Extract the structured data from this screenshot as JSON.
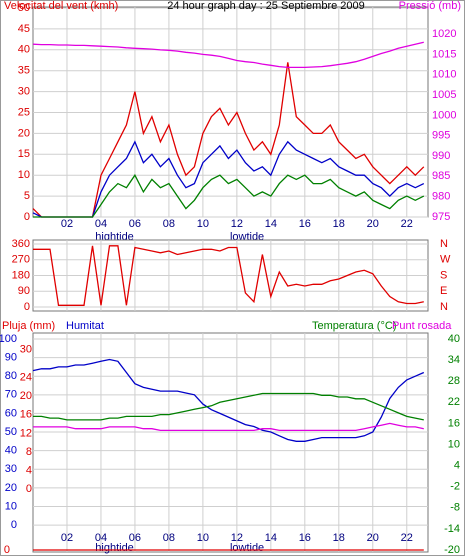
{
  "chart_data": [
    {
      "type": "line",
      "title": "24 hour graph day : 25 Septiembre 2009",
      "ylabel": "Velocitat del vent (kmh)",
      "y2label": "Pressió (mb)",
      "x": [
        0,
        0.5,
        1,
        1.5,
        2,
        2.5,
        3,
        3.5,
        4,
        4.5,
        5,
        5.5,
        6,
        6.5,
        7,
        7.5,
        8,
        8.5,
        9,
        9.5,
        10,
        10.5,
        11,
        11.5,
        12,
        12.5,
        13,
        13.5,
        14,
        14.5,
        15,
        15.5,
        16,
        16.5,
        17,
        17.5,
        18,
        18.5,
        19,
        19.5,
        20,
        20.5,
        21,
        21.5,
        22,
        22.5,
        23
      ],
      "xlim": [
        0,
        23.25
      ],
      "xticks": [
        {
          "value": 2,
          "label": "02"
        },
        {
          "value": 4,
          "label": "04"
        },
        {
          "value": 6,
          "label": "06"
        },
        {
          "value": 8,
          "label": "08"
        },
        {
          "value": 10,
          "label": "10"
        },
        {
          "value": 12,
          "label": "12"
        },
        {
          "value": 14,
          "label": "14"
        },
        {
          "value": 16,
          "label": "16"
        },
        {
          "value": 18,
          "label": "18"
        },
        {
          "value": 20,
          "label": "20"
        },
        {
          "value": 22,
          "label": "22"
        }
      ],
      "ylim": [
        0,
        50
      ],
      "yticks": [
        0,
        5,
        10,
        15,
        20,
        25,
        30,
        35,
        40,
        45,
        50
      ],
      "ytick_color": "#dd0000",
      "y2lim": [
        975,
        1026.4
      ],
      "y2ticks": [
        975,
        980,
        985,
        990,
        995,
        1000,
        1005,
        1010,
        1015,
        1020
      ],
      "y2tick_color": "#dd00dd",
      "grid": true,
      "annotations": [
        {
          "text": "hightide",
          "x": 4.8
        },
        {
          "text": "lowtide",
          "x": 12.6
        }
      ],
      "series": [
        {
          "color": "#e00000",
          "axis": "y",
          "values": [
            2,
            0,
            0,
            0,
            0,
            0,
            0,
            0,
            10,
            14,
            18,
            22,
            30,
            20,
            24,
            18,
            22,
            15,
            10,
            12,
            20,
            24,
            26,
            22,
            25,
            20,
            16,
            18,
            15,
            22,
            37,
            24,
            22,
            20,
            20,
            22,
            18,
            16,
            14,
            15,
            12,
            10,
            8,
            10,
            12,
            10,
            12
          ]
        },
        {
          "color": "#0000c8",
          "axis": "y",
          "values": [
            1,
            0,
            0,
            0,
            0,
            0,
            0,
            0,
            6,
            10,
            12,
            14,
            18,
            13,
            15,
            12,
            14,
            10,
            7,
            8,
            13,
            15,
            17,
            14,
            16,
            13,
            11,
            12,
            10,
            15,
            18,
            16,
            15,
            14,
            13,
            14,
            12,
            11,
            10,
            10,
            8,
            7,
            5,
            7,
            8,
            7,
            8
          ]
        },
        {
          "color": "#008000",
          "axis": "y",
          "values": [
            0,
            0,
            0,
            0,
            0,
            0,
            0,
            0,
            3,
            6,
            8,
            7,
            10,
            6,
            9,
            7,
            8,
            5,
            2,
            4,
            7,
            9,
            10,
            8,
            9,
            7,
            5,
            6,
            5,
            8,
            10,
            9,
            10,
            8,
            8,
            9,
            7,
            6,
            5,
            6,
            4,
            3,
            2,
            4,
            5,
            4,
            5
          ]
        },
        {
          "color": "#e000e0",
          "axis": "y2",
          "values": [
            1017.5,
            1017.4,
            1017.4,
            1017.3,
            1017.3,
            1017.2,
            1017.2,
            1017.1,
            1017,
            1016.9,
            1016.8,
            1016.6,
            1016.5,
            1016.4,
            1016.3,
            1016.1,
            1016,
            1015.8,
            1015.5,
            1015.3,
            1015,
            1014.8,
            1014.5,
            1014,
            1013.5,
            1013.2,
            1013,
            1012.6,
            1012.3,
            1012,
            1011.8,
            1011.8,
            1011.8,
            1011.9,
            1012,
            1012.2,
            1012.5,
            1012.8,
            1013.2,
            1013.8,
            1014.5,
            1015.2,
            1015.8,
            1016.5,
            1017,
            1017.5,
            1018
          ]
        }
      ]
    },
    {
      "type": "line",
      "x": [
        0,
        0.5,
        1,
        1.5,
        2,
        2.5,
        3,
        3.5,
        4,
        4.5,
        5,
        5.5,
        6,
        6.5,
        7,
        7.5,
        8,
        8.5,
        9,
        9.5,
        10,
        10.5,
        11,
        11.5,
        12,
        12.5,
        13,
        13.5,
        14,
        14.5,
        15,
        15.5,
        16,
        16.5,
        17,
        17.5,
        18,
        18.5,
        19,
        19.5,
        20,
        20.5,
        21,
        21.5,
        22,
        22.5,
        23
      ],
      "xlim": [
        0,
        23.25
      ],
      "ylim": [
        0,
        360
      ],
      "yticks": [
        0,
        90,
        180,
        270,
        360
      ],
      "ytick_color": "#dd0000",
      "y2lim": [
        0,
        360
      ],
      "y2ticks": [
        {
          "value": 0,
          "label": "N"
        },
        {
          "value": 90,
          "label": "E"
        },
        {
          "value": 180,
          "label": "S"
        },
        {
          "value": 270,
          "label": "W"
        },
        {
          "value": 360,
          "label": "N"
        }
      ],
      "y2tick_color": "#dd0000",
      "grid": true,
      "series": [
        {
          "color": "#e00000",
          "axis": "y",
          "values": [
            330,
            330,
            330,
            10,
            10,
            10,
            10,
            350,
            10,
            350,
            350,
            10,
            340,
            330,
            320,
            310,
            320,
            300,
            310,
            320,
            330,
            330,
            320,
            340,
            340,
            80,
            30,
            300,
            60,
            200,
            120,
            130,
            120,
            130,
            130,
            150,
            160,
            180,
            200,
            210,
            190,
            120,
            60,
            30,
            20,
            20,
            30
          ]
        }
      ]
    },
    {
      "type": "line",
      "x": [
        0,
        0.5,
        1,
        1.5,
        2,
        2.5,
        3,
        3.5,
        4,
        4.5,
        5,
        5.5,
        6,
        6.5,
        7,
        7.5,
        8,
        8.5,
        9,
        9.5,
        10,
        10.5,
        11,
        11.5,
        12,
        12.5,
        13,
        13.5,
        14,
        14.5,
        15,
        15.5,
        16,
        16.5,
        17,
        17.5,
        18,
        18.5,
        19,
        19.5,
        20,
        20.5,
        21,
        21.5,
        22,
        22.5,
        23
      ],
      "xlim": [
        0,
        23.25
      ],
      "xticks": [
        {
          "value": 2,
          "label": "02"
        },
        {
          "value": 4,
          "label": "04"
        },
        {
          "value": 6,
          "label": "06"
        },
        {
          "value": 8,
          "label": "08"
        },
        {
          "value": 10,
          "label": "10"
        },
        {
          "value": 12,
          "label": "12"
        },
        {
          "value": 14,
          "label": "14"
        },
        {
          "value": 16,
          "label": "16"
        },
        {
          "value": 18,
          "label": "18"
        },
        {
          "value": 20,
          "label": "20"
        },
        {
          "value": 22,
          "label": "22"
        }
      ],
      "ylim": [
        -13.4,
        100
      ],
      "yticks": [
        0,
        10,
        20,
        30,
        40,
        50,
        60,
        70,
        80,
        90,
        100
      ],
      "ytick_color": "#0000c8",
      "y2lim": [
        -20,
        40
      ],
      "y2ticks": [
        -20,
        -14,
        -8,
        -2,
        4,
        10,
        16,
        22,
        28,
        34,
        40
      ],
      "y2tick_color": "#008000",
      "y3lim": [
        0,
        10
      ],
      "y3ticks": [
        0
      ],
      "y3tick_color": "#dd0000",
      "y4lim": [
        -13.1,
        32.3
      ],
      "y4ticks": [
        0,
        4,
        8,
        12,
        16,
        20,
        24,
        30
      ],
      "y4tick_color": "#dd0000",
      "grid": true,
      "annotations": [
        {
          "text": "hightide",
          "x": 4.8
        },
        {
          "text": "lowtide",
          "x": 12.6
        }
      ],
      "series": [
        {
          "name": "Pluja (mm)",
          "color": "#e00000",
          "axis": "y3",
          "values": [
            0,
            0,
            0,
            0,
            0,
            0,
            0,
            0,
            0,
            0,
            0,
            0,
            0,
            0,
            0,
            0,
            0,
            0,
            0,
            0,
            0,
            0,
            0,
            0,
            0,
            0,
            0,
            0,
            0,
            0,
            0,
            0,
            0,
            0,
            0,
            0,
            0,
            0,
            0,
            0,
            0,
            0,
            0,
            0,
            0,
            0,
            0
          ]
        },
        {
          "name": "Humitat",
          "color": "#0000c8",
          "axis": "y",
          "values": [
            83,
            84,
            84,
            85,
            85,
            86,
            86,
            87,
            88,
            89,
            88,
            82,
            76,
            74,
            73,
            72,
            72,
            72,
            71,
            70,
            65,
            62,
            60,
            58,
            56,
            54,
            53,
            51,
            50,
            48,
            46,
            45,
            45,
            46,
            47,
            47,
            47,
            47,
            47,
            48,
            50,
            58,
            68,
            74,
            78,
            80,
            82
          ]
        },
        {
          "name": "Temperatura (°C)",
          "color": "#008000",
          "axis": "y2",
          "values": [
            18,
            18,
            17.5,
            17.5,
            17,
            17,
            17,
            17,
            17,
            17.5,
            17.5,
            18,
            18,
            18,
            18,
            18.5,
            18.5,
            19,
            19.5,
            20,
            20.5,
            21,
            22,
            22.5,
            23,
            23.5,
            24,
            24.5,
            24.5,
            24.5,
            24.5,
            24.5,
            24.5,
            24.5,
            24,
            24,
            23.5,
            23.5,
            23,
            23,
            22,
            21,
            20,
            19,
            18,
            17.5,
            17
          ]
        },
        {
          "name": "Punt rosada",
          "color": "#e000e0",
          "axis": "y2",
          "values": [
            15,
            15,
            15,
            15,
            15,
            14.5,
            14.5,
            14.5,
            14.5,
            15,
            15,
            15,
            15,
            14.5,
            14.5,
            14,
            14,
            14,
            14,
            14,
            14,
            14,
            14,
            14,
            14,
            14,
            14,
            14.5,
            14.5,
            14,
            14,
            14,
            14,
            14,
            14,
            14,
            14,
            14,
            14,
            14.5,
            15,
            15.5,
            16,
            15.5,
            15,
            15,
            14.5
          ]
        }
      ]
    }
  ]
}
